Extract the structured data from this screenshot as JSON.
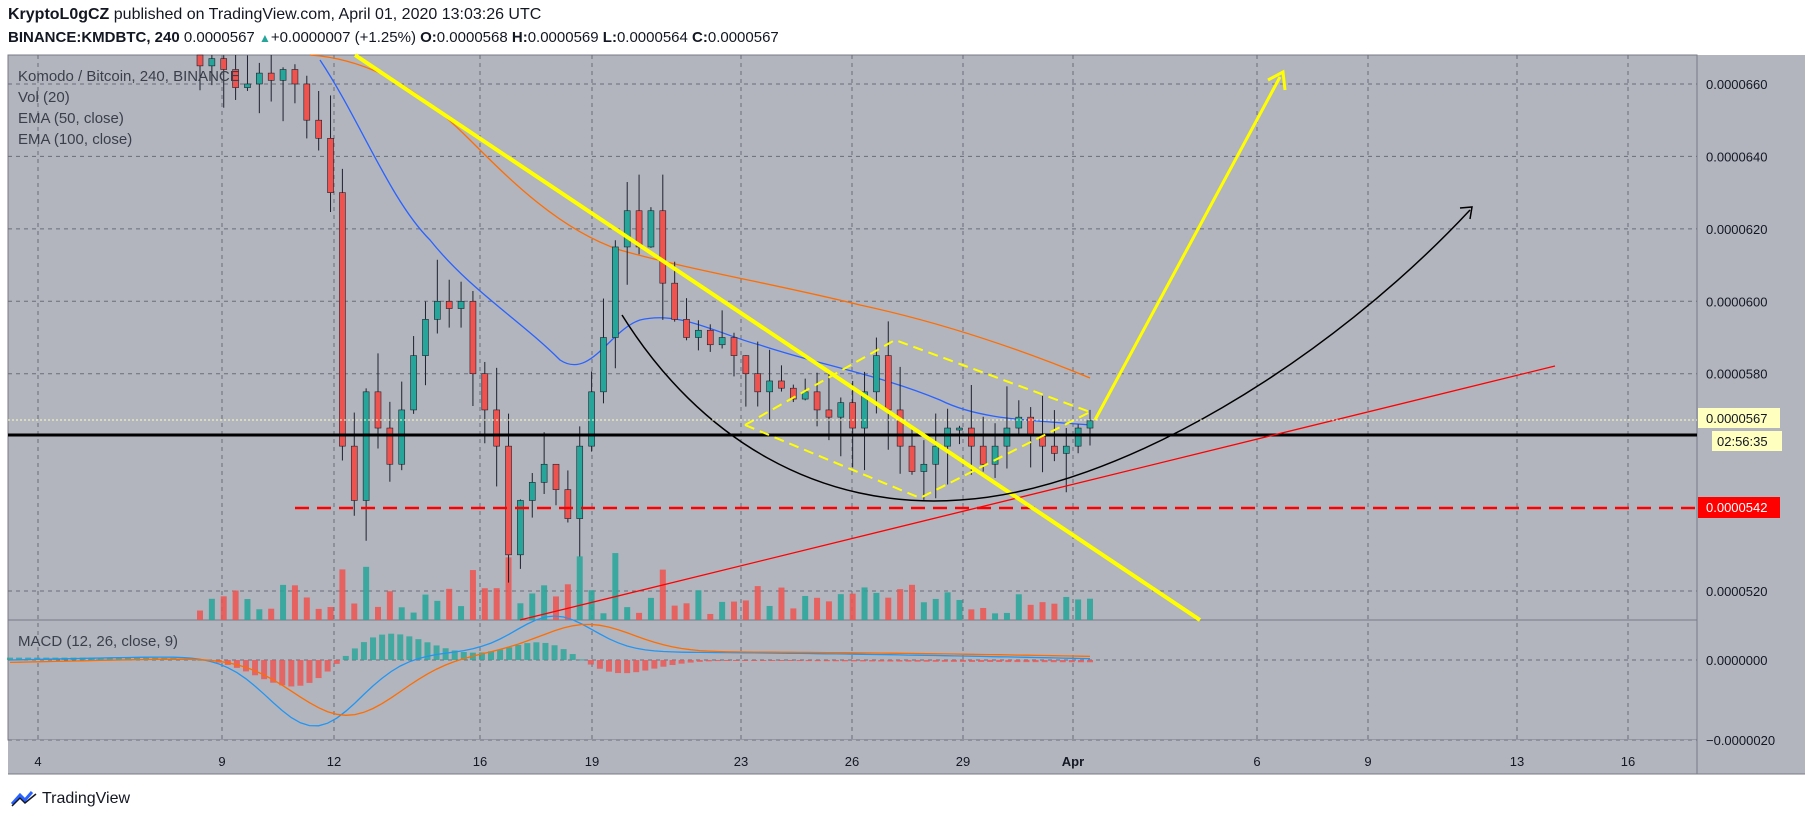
{
  "header": {
    "author": "KryptoL0gCZ",
    "published": "published on TradingView.com, April 01, 2020 13:03:26 UTC",
    "symbol": "BINANCE:KMDBTC, 240",
    "last": "0.0000567",
    "change": "+0.0000007 (+1.25%)",
    "o_label": "O:",
    "o": "0.0000568",
    "h_label": "H:",
    "h": "0.0000569",
    "l_label": "L:",
    "l": "0.0000564",
    "c_label": "C:",
    "c": "0.0000567"
  },
  "legend": {
    "main": "Komodo / Bitcoin, 240, BINANCE",
    "vol": "Vol (20)",
    "ema50": "EMA (50, close)",
    "ema100": "EMA (100, close)",
    "macd": "MACD (12, 26, close, 9)"
  },
  "price_axis": {
    "ticks": [
      "0.0000660",
      "0.0000640",
      "0.0000620",
      "0.0000600",
      "0.0000580",
      "0.0000520"
    ],
    "last_price_tag": "0.0000567",
    "countdown": "02:56:35",
    "level_tag": "0.0000542"
  },
  "macd_axis": {
    "ticks": [
      "0.0000000",
      "−0.0000020"
    ]
  },
  "time_axis": {
    "ticks": [
      "4",
      "9",
      "12",
      "16",
      "19",
      "23",
      "26",
      "29",
      "Apr",
      "6",
      "9",
      "13",
      "16"
    ]
  },
  "colors": {
    "background": "#b2b5be",
    "up": "#26a69a",
    "down": "#ef5350",
    "ema50": "#2962ff",
    "ema100": "#ff6d00",
    "trend": "#ffff00",
    "support": "#ff0000",
    "black": "#000000"
  },
  "footer": {
    "brand": "TradingView",
    "icon": "tradingview-logo-icon"
  },
  "chart_data": {
    "type": "candlestick",
    "symbol": "KMDBTC",
    "timeframe": "240",
    "x_range": [
      "Mar 2",
      "Apr 18"
    ],
    "y_range": [
      5.12e-05,
      6.68e-05
    ],
    "horizontal_levels": [
      5.62e-05,
      5.42e-05
    ],
    "candles_close_approx": [
      6.65e-05,
      6.67e-05,
      6.64e-05,
      6.59e-05,
      6.6e-05,
      6.63e-05,
      6.61e-05,
      6.64e-05,
      6.6e-05,
      6.5e-05,
      6.45e-05,
      6.3e-05,
      5.6e-05,
      5.45e-05,
      5.75e-05,
      5.65e-05,
      5.55e-05,
      5.7e-05,
      5.85e-05,
      5.95e-05,
      6e-05,
      5.98e-05,
      6e-05,
      5.8e-05,
      5.7e-05,
      5.6e-05,
      5.3e-05,
      5.45e-05,
      5.5e-05,
      5.55e-05,
      5.48e-05,
      5.4e-05,
      5.6e-05,
      5.75e-05,
      5.9e-05,
      6.15e-05,
      6.25e-05,
      6.15e-05,
      6.25e-05,
      6.05e-05,
      5.95e-05,
      5.9e-05,
      5.92e-05,
      5.88e-05,
      5.9e-05,
      5.85e-05,
      5.8e-05,
      5.75e-05,
      5.78e-05,
      5.76e-05,
      5.73e-05,
      5.75e-05,
      5.7e-05,
      5.68e-05,
      5.72e-05,
      5.65e-05,
      5.75e-05,
      5.85e-05,
      5.7e-05,
      5.6e-05,
      5.53e-05,
      5.55e-05,
      5.6e-05,
      5.65e-05,
      5.65e-05,
      5.6e-05,
      5.55e-05,
      5.6e-05,
      5.65e-05,
      5.68e-05,
      5.63e-05,
      5.6e-05,
      5.58e-05,
      5.6e-05,
      5.65e-05,
      5.67e-05
    ],
    "macd_range": [
      -2e-06,
      1e-06
    ]
  }
}
